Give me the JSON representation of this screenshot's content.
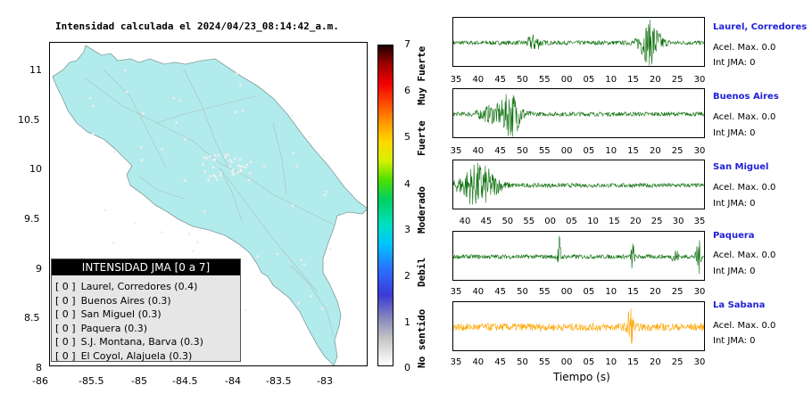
{
  "map": {
    "title": "Intensidad calculada el 2024/04/23_08:14:42_a.m.",
    "x_ticks": [
      "-86",
      "-85.5",
      "-85",
      "-84.5",
      "-84",
      "-83.5",
      "-83"
    ],
    "y_ticks": [
      "11",
      "10.5",
      "10",
      "9.5",
      "9",
      "8.5",
      "8"
    ],
    "land_color": "#b2ebec",
    "legend_title": "INTENSIDAD JMA [0 a 7]",
    "legend_items": [
      {
        "bracket": "[ 0 ]",
        "label": "Laurel, Corredores (0.4)"
      },
      {
        "bracket": "[ 0 ]",
        "label": "Buenos Aires (0.3)"
      },
      {
        "bracket": "[ 0 ]",
        "label": "San Miguel (0.3)"
      },
      {
        "bracket": "[ 0 ]",
        "label": "Paquera (0.3)"
      },
      {
        "bracket": "[ 0 ]",
        "label": "S.J. Montana, Barva (0.3)"
      },
      {
        "bracket": "[ 0 ]",
        "label": "El Coyol, Alajuela (0.3)"
      }
    ]
  },
  "colorbar": {
    "numbers": [
      "7",
      "6",
      "5",
      "4",
      "3",
      "2",
      "1",
      "0"
    ],
    "words": [
      "Muy Fuerte",
      "Fuerte",
      "Moderado",
      "Debil",
      "No sentido"
    ]
  },
  "waveforms": {
    "xlabel": "Tiempo (s)",
    "stations": [
      {
        "name": "Laurel, Corredores",
        "accel": "Acel. Max. 0.0",
        "jma": "Int JMA: 0",
        "color": "#0a6e0a",
        "ticks": [
          "35",
          "40",
          "45",
          "50",
          "55",
          "00",
          "05",
          "10",
          "15",
          "20",
          "25",
          "30"
        ]
      },
      {
        "name": "Buenos Aires",
        "accel": "Acel. Max. 0.0",
        "jma": "Int JMA: 0",
        "color": "#0a6e0a",
        "ticks": [
          "35",
          "40",
          "45",
          "50",
          "55",
          "00",
          "05",
          "10",
          "15",
          "20",
          "25",
          "30"
        ]
      },
      {
        "name": "San Miguel",
        "accel": "Acel. Max. 0.0",
        "jma": "Int JMA: 0",
        "color": "#0a6e0a",
        "ticks": [
          "40",
          "45",
          "50",
          "55",
          "00",
          "05",
          "10",
          "15",
          "20",
          "25",
          "30",
          "35"
        ]
      },
      {
        "name": "Paquera",
        "accel": "Acel. Max. 0.0",
        "jma": "Int JMA: 0",
        "color": "#0a6e0a",
        "ticks": [
          "35",
          "40",
          "45",
          "50",
          "55",
          "00",
          "05",
          "10",
          "15",
          "20",
          "25",
          "30"
        ]
      },
      {
        "name": "La Sabana",
        "accel": "Acel. Max. 0.0",
        "jma": "Int JMA: 0",
        "color": "#ffa500",
        "ticks": [
          "35",
          "40",
          "45",
          "50",
          "55",
          "00",
          "05",
          "10",
          "15",
          "20",
          "25",
          "30"
        ]
      }
    ]
  }
}
